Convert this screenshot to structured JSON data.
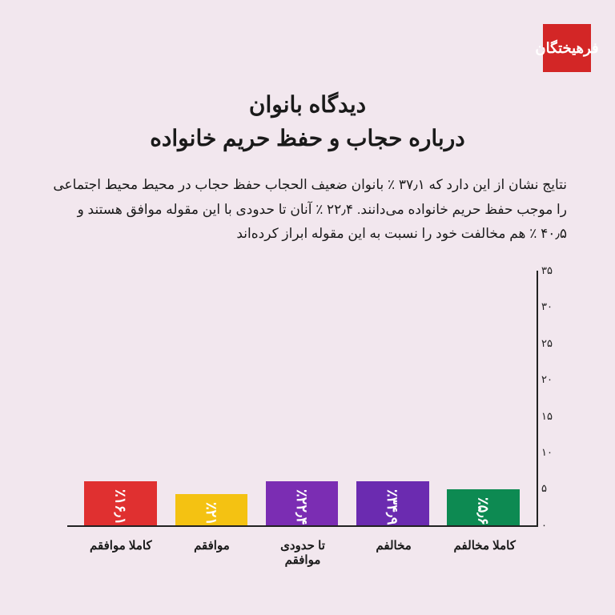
{
  "logo_text": "فرهیختگان",
  "title_line1": "دیدگاه بانوان",
  "title_line2": "درباره حجاب و حفظ حریم خانواده",
  "description": "نتایج نشان از این دارد که ۳۷٫۱ ٪ بانوان ضعیف الحجاب حفظ حجاب در محیط محیط اجتماعی را موجب حفظ حریم خانواده می‌دانند. ۲۲٫۴ ٪ آنان تا حدودی با این مقوله موافق هستند و ۴۰٫۵ ٪ هم مخالفت خود را نسبت به این مقوله ابراز کرده‌اند",
  "chart": {
    "type": "bar",
    "ymax": 35,
    "ytick_step": 5,
    "yticks": [
      "۰",
      "۵",
      "۱۰",
      "۱۵",
      "۲۰",
      "۲۵",
      "۳۰",
      "۳۵"
    ],
    "background_color": "#f2e7ee",
    "axis_color": "#222222",
    "bars": [
      {
        "label": "کاملا موافقم",
        "value": 16.1,
        "value_text": "٪۱۶٫۱",
        "color": "#e03030"
      },
      {
        "label": "موافقم",
        "value": 21.0,
        "value_text": "٪۲۱",
        "color": "#f4c212"
      },
      {
        "label": "تا حدودی موافقم",
        "value": 22.4,
        "value_text": "٪۲۲٫۴",
        "color": "#7b2db3"
      },
      {
        "label": "مخالفم",
        "value": 34.9,
        "value_text": "٪۳۴٫۹",
        "color": "#6b2bb0"
      },
      {
        "label": "کاملا مخالفم",
        "value": 5.6,
        "value_text": "٪۵٫۶",
        "color": "#0d8a52"
      }
    ],
    "title_fontsize": 28,
    "label_fontsize": 15,
    "bar_label_fontsize": 18,
    "bar_label_color": "#ffffff"
  }
}
